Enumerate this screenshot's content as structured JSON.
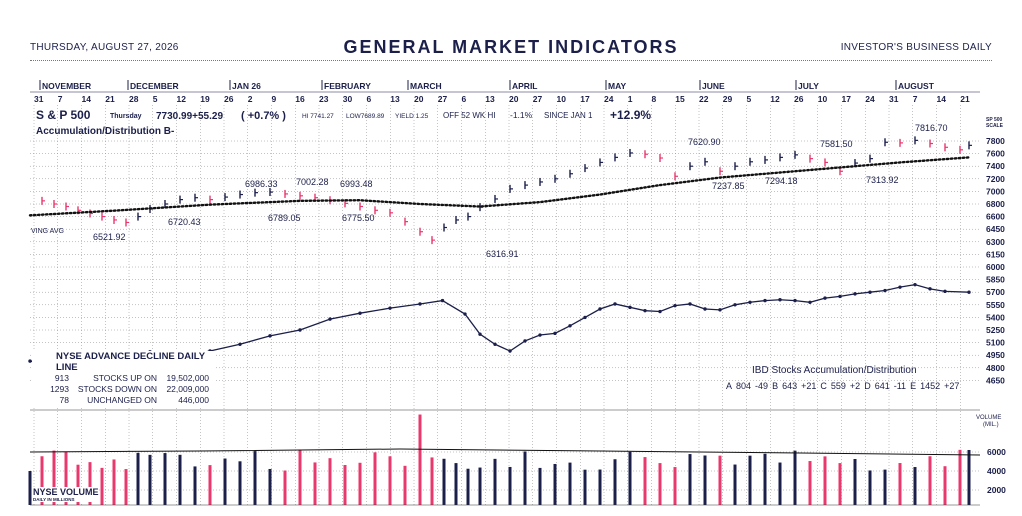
{
  "header": {
    "date": "THURSDAY, AUGUST 27, 2026",
    "title": "GENERAL MARKET INDICATORS",
    "publisher": "INVESTOR'S BUSINESS DAILY"
  },
  "months": [
    "NOVEMBER",
    "DECEMBER",
    "JAN 26",
    "FEBRUARY",
    "MARCH",
    "APRIL",
    "MAY",
    "JUNE",
    "JULY",
    "AUGUST"
  ],
  "day_ticks": [
    "31",
    "7",
    "14",
    "21",
    "28",
    "5",
    "12",
    "19",
    "26",
    "2",
    "9",
    "16",
    "23",
    "30",
    "6",
    "13",
    "20",
    "27",
    "6",
    "13",
    "20",
    "27",
    "10",
    "17",
    "24",
    "1",
    "8",
    "15",
    "22",
    "29",
    "5",
    "12",
    "26",
    "10",
    "17",
    "24",
    "31",
    "7",
    "14",
    "21"
  ],
  "quote": {
    "name": "S & P 500",
    "day": "Thursday",
    "close": "7730.99",
    "change": "+55.29",
    "pct": "( +0.7% )",
    "hi": "HI 7741.27",
    "low": "LOW7689.89",
    "yield": "YIELD 1.25",
    "off52": "OFF 52 WK HI",
    "off52_val": "-1.1%",
    "since": "SINCE JAN 1",
    "since_val": "+12.9%",
    "ad_rating": "Accumulation/Distribution  B-"
  },
  "price_axis": {
    "title_top": "SP 500",
    "title_bottom": "SCALE",
    "ticks": [
      "7800",
      "7600",
      "7400",
      "7200",
      "7000",
      "6800",
      "6600",
      "6450",
      "6300",
      "6150",
      "6000",
      "5850",
      "5700",
      "5550",
      "5400",
      "5250",
      "5100",
      "4950",
      "4800",
      "4650"
    ]
  },
  "volume_axis": {
    "title_top": "VOLUME",
    "title_bottom": "(MIL.)",
    "ticks": [
      "6000",
      "4000",
      "2000"
    ]
  },
  "moving_avg_label": "VING AVG",
  "annotations": [
    "6521.92",
    "6720.43",
    "6986.33",
    "6789.05",
    "7002.28",
    "6993.48",
    "6775.50",
    "6316.91",
    "7620.90",
    "7237.85",
    "7294.18",
    "7581.50",
    "7313.92",
    "7816.70"
  ],
  "advance_decline": {
    "title": "NYSE ADVANCE DECLINE DAILY LINE",
    "rows": [
      {
        "count": "913",
        "label": "STOCKS  UP ON",
        "volume": "19,502,000"
      },
      {
        "count": "1293",
        "label": "STOCKS  DOWN ON",
        "volume": "22,009,000"
      },
      {
        "count": "78",
        "label": "UNCHANGED ON",
        "volume": "446,000"
      }
    ]
  },
  "ibd_accum": {
    "title": "IBD Stocks Accumulation/Distribution",
    "row": [
      "A",
      "804",
      "-49",
      "B",
      "643",
      "+21",
      "C",
      "559",
      "+2",
      "D",
      "641",
      "-11",
      "E",
      "1452",
      "+27"
    ]
  },
  "nyse_volume": {
    "title": "NYSE VOLUME",
    "subtitle": "DAILY IN MILLIONS"
  },
  "colors": {
    "navy": "#1b1f4a",
    "pink": "#e8386e"
  },
  "chart_data": {
    "type": "line",
    "title": "GENERAL MARKET INDICATORS",
    "series": [
      {
        "name": "S & P 500",
        "points": [
          [
            0,
            6870
          ],
          [
            8,
            6850
          ],
          [
            16,
            6800
          ],
          [
            24,
            6760
          ],
          [
            32,
            6700
          ],
          [
            40,
            6650
          ],
          [
            48,
            6600
          ],
          [
            56,
            6560
          ],
          [
            64,
            6530
          ],
          [
            72,
            6600
          ],
          [
            80,
            6720
          ],
          [
            90,
            6800
          ],
          [
            100,
            6870
          ],
          [
            110,
            6900
          ],
          [
            120,
            6870
          ],
          [
            130,
            6910
          ],
          [
            140,
            6950
          ],
          [
            150,
            6980
          ],
          [
            160,
            6990
          ],
          [
            170,
            6960
          ],
          [
            180,
            6930
          ],
          [
            190,
            6900
          ],
          [
            200,
            6860
          ],
          [
            210,
            6810
          ],
          [
            220,
            6760
          ],
          [
            230,
            6700
          ],
          [
            240,
            6660
          ],
          [
            250,
            6540
          ],
          [
            260,
            6420
          ],
          [
            268,
            6320
          ],
          [
            276,
            6470
          ],
          [
            284,
            6560
          ],
          [
            292,
            6600
          ],
          [
            300,
            6750
          ],
          [
            310,
            6880
          ],
          [
            320,
            7040
          ],
          [
            330,
            7100
          ],
          [
            340,
            7150
          ],
          [
            350,
            7200
          ],
          [
            360,
            7280
          ],
          [
            370,
            7370
          ],
          [
            380,
            7460
          ],
          [
            390,
            7540
          ],
          [
            400,
            7610
          ],
          [
            410,
            7590
          ],
          [
            420,
            7530
          ],
          [
            430,
            7240
          ],
          [
            440,
            7400
          ],
          [
            450,
            7470
          ],
          [
            460,
            7320
          ],
          [
            470,
            7400
          ],
          [
            480,
            7470
          ],
          [
            490,
            7500
          ],
          [
            500,
            7540
          ],
          [
            510,
            7580
          ],
          [
            520,
            7520
          ],
          [
            530,
            7460
          ],
          [
            540,
            7320
          ],
          [
            550,
            7450
          ],
          [
            560,
            7520
          ],
          [
            570,
            7780
          ],
          [
            580,
            7770
          ],
          [
            590,
            7810
          ],
          [
            600,
            7760
          ],
          [
            610,
            7700
          ],
          [
            620,
            7660
          ],
          [
            626,
            7731
          ]
        ]
      },
      {
        "name": "Moving Average",
        "points": [
          [
            0,
            6620
          ],
          [
            60,
            6700
          ],
          [
            120,
            6790
          ],
          [
            180,
            6850
          ],
          [
            220,
            6860
          ],
          [
            260,
            6800
          ],
          [
            300,
            6760
          ],
          [
            340,
            6830
          ],
          [
            380,
            6950
          ],
          [
            420,
            7100
          ],
          [
            460,
            7220
          ],
          [
            500,
            7300
          ],
          [
            540,
            7380
          ],
          [
            580,
            7460
          ],
          [
            626,
            7540
          ]
        ]
      },
      {
        "name": "NYSE ADVANCE DECLINE DAILY LINE",
        "points": [
          [
            0,
            4880
          ],
          [
            20,
            4830
          ],
          [
            40,
            4900
          ],
          [
            60,
            4960
          ],
          [
            80,
            4990
          ],
          [
            100,
            4930
          ],
          [
            120,
            5000
          ],
          [
            140,
            5080
          ],
          [
            160,
            5180
          ],
          [
            180,
            5250
          ],
          [
            200,
            5380
          ],
          [
            220,
            5450
          ],
          [
            240,
            5510
          ],
          [
            260,
            5560
          ],
          [
            275,
            5600
          ],
          [
            290,
            5440
          ],
          [
            300,
            5200
          ],
          [
            310,
            5080
          ],
          [
            320,
            5000
          ],
          [
            330,
            5120
          ],
          [
            340,
            5190
          ],
          [
            350,
            5210
          ],
          [
            360,
            5300
          ],
          [
            370,
            5400
          ],
          [
            380,
            5500
          ],
          [
            390,
            5560
          ],
          [
            400,
            5520
          ],
          [
            410,
            5480
          ],
          [
            420,
            5470
          ],
          [
            430,
            5540
          ],
          [
            440,
            5560
          ],
          [
            450,
            5500
          ],
          [
            460,
            5490
          ],
          [
            470,
            5550
          ],
          [
            480,
            5580
          ],
          [
            490,
            5600
          ],
          [
            500,
            5610
          ],
          [
            510,
            5600
          ],
          [
            520,
            5580
          ],
          [
            530,
            5630
          ],
          [
            540,
            5650
          ],
          [
            550,
            5680
          ],
          [
            560,
            5700
          ],
          [
            570,
            5720
          ],
          [
            580,
            5760
          ],
          [
            590,
            5790
          ],
          [
            600,
            5740
          ],
          [
            610,
            5710
          ],
          [
            626,
            5700
          ]
        ]
      }
    ],
    "ylim": [
      4650,
      7850
    ],
    "grid": true
  }
}
